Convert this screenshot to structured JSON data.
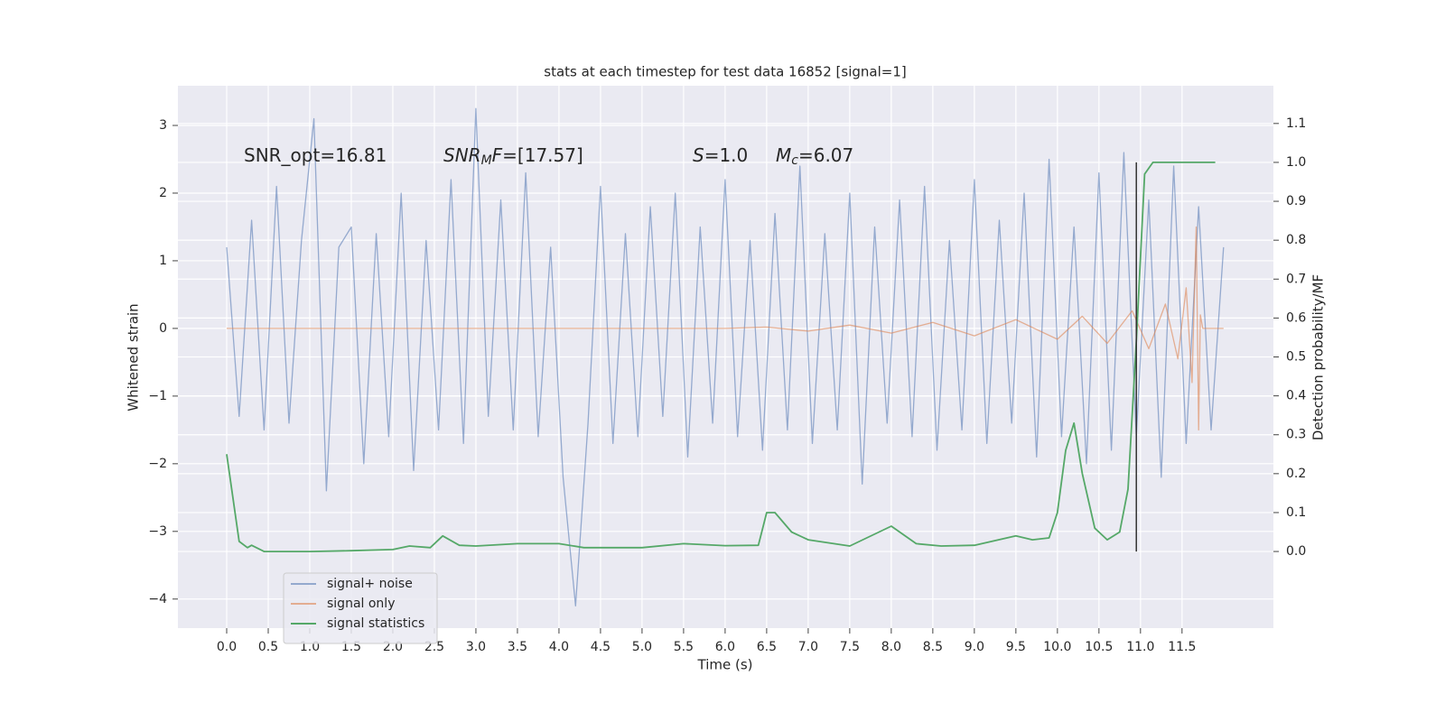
{
  "chart_data": {
    "type": "line",
    "title": "stats at each timestep for test data 16852 [signal=1]",
    "xlabel": "Time (s)",
    "ylabel": "Whitened strain",
    "y2label": "Detection probability/MF",
    "xlim": [
      -0.587,
      12.6
    ],
    "ylim": [
      -4.43,
      3.587
    ],
    "y2lim": [
      -0.197,
      1.197
    ],
    "xticks": [
      {
        "value": 0,
        "label": "0.0"
      },
      0.5,
      {
        "value": 1,
        "label": "1.0"
      },
      1.5,
      {
        "value": 2,
        "label": "2.0"
      },
      2.5,
      {
        "value": 3,
        "label": "3.0"
      },
      3.5,
      {
        "value": 4,
        "label": "4.0"
      },
      4.5,
      {
        "value": 5,
        "label": "5.0"
      },
      5.5,
      {
        "value": 6,
        "label": "6.0"
      },
      6.5,
      {
        "value": 7,
        "label": "7.0"
      },
      7.5,
      {
        "value": 8,
        "label": "8.0"
      },
      8.5,
      {
        "value": 9,
        "label": "9.0"
      },
      9.5,
      {
        "value": 10,
        "label": "10.0"
      },
      10.5,
      {
        "value": 11,
        "label": "11.0"
      },
      11.5
    ],
    "yticks": [
      {
        "value": -4,
        "label": "−4"
      },
      {
        "value": -3,
        "label": "−3"
      },
      {
        "value": -2,
        "label": "−2"
      },
      {
        "value": -1,
        "label": "−1"
      },
      0,
      1,
      2,
      3
    ],
    "y2ticks": [
      {
        "value": 0,
        "label": "0.0"
      },
      0.1,
      0.2,
      0.3,
      0.4,
      0.5,
      0.6,
      0.7,
      0.8,
      0.9,
      {
        "value": 1,
        "label": "1.0"
      },
      1.1
    ],
    "grid": true,
    "legend": "lower left",
    "series": [
      {
        "name": "signal+ noise",
        "color": "#4c72b0",
        "x": [
          0,
          0.15,
          0.3,
          0.45,
          0.6,
          0.75,
          0.9,
          1.05,
          1.2,
          1.35,
          1.5,
          1.65,
          1.8,
          1.95,
          2.1,
          2.25,
          2.4,
          2.55,
          2.7,
          2.85,
          3,
          3.15,
          3.3,
          3.45,
          3.6,
          3.75,
          3.9,
          4.05,
          4.2,
          4.35,
          4.5,
          4.65,
          4.8,
          4.95,
          5.1,
          5.25,
          5.4,
          5.55,
          5.7,
          5.85,
          6,
          6.15,
          6.3,
          6.45,
          6.6,
          6.75,
          6.9,
          7.05,
          7.2,
          7.35,
          7.5,
          7.65,
          7.8,
          7.95,
          8.1,
          8.25,
          8.4,
          8.55,
          8.7,
          8.85,
          9,
          9.15,
          9.3,
          9.45,
          9.6,
          9.75,
          9.9,
          10.05,
          10.2,
          10.35,
          10.5,
          10.65,
          10.8,
          10.95,
          11.1,
          11.25,
          11.4,
          11.55,
          11.7,
          11.85,
          12
        ],
        "values": [
          1.2,
          -1.3,
          1.6,
          -1.5,
          2.1,
          -1.4,
          1.3,
          3.1,
          -2.4,
          1.2,
          1.5,
          -2.0,
          1.4,
          -1.6,
          2.0,
          -2.1,
          1.3,
          -1.5,
          2.2,
          -1.7,
          3.25,
          -1.3,
          1.9,
          -1.5,
          2.3,
          -1.6,
          1.2,
          -2.2,
          -4.1,
          -1.4,
          2.1,
          -1.7,
          1.4,
          -1.6,
          1.8,
          -1.3,
          2.0,
          -1.9,
          1.5,
          -1.4,
          2.2,
          -1.6,
          1.3,
          -1.8,
          1.7,
          -1.5,
          2.4,
          -1.7,
          1.4,
          -1.5,
          2.0,
          -2.3,
          1.5,
          -1.4,
          1.9,
          -1.6,
          2.1,
          -1.8,
          1.3,
          -1.5,
          2.2,
          -1.7,
          1.6,
          -1.4,
          2.0,
          -1.9,
          2.5,
          -1.6,
          1.5,
          -2.0,
          2.3,
          -1.8,
          2.6,
          -1.6,
          1.9,
          -2.2,
          2.4,
          -1.7,
          1.8,
          -1.5,
          1.2
        ]
      },
      {
        "name": "signal only",
        "color": "#dd8452",
        "x": [
          0,
          6,
          6.5,
          7,
          7.5,
          8,
          8.5,
          9,
          9.5,
          10,
          10.3,
          10.6,
          10.9,
          11.1,
          11.3,
          11.45,
          11.55,
          11.62,
          11.67,
          11.7,
          11.72,
          11.75,
          12
        ],
        "values": [
          0,
          0,
          0.02,
          -0.04,
          0.05,
          -0.07,
          0.09,
          -0.11,
          0.13,
          -0.16,
          0.18,
          -0.22,
          0.26,
          -0.3,
          0.36,
          -0.45,
          0.6,
          -0.8,
          1.5,
          -1.5,
          0.2,
          0,
          0
        ]
      },
      {
        "name": "signal statistics",
        "color": "#55a868",
        "axis": "y2",
        "x": [
          0,
          0.15,
          0.25,
          0.3,
          0.45,
          1.0,
          1.5,
          2.0,
          2.2,
          2.45,
          2.6,
          2.8,
          3.0,
          3.5,
          4.0,
          4.3,
          5.0,
          5.5,
          6.0,
          6.4,
          6.5,
          6.6,
          6.8,
          7.0,
          7.5,
          8.0,
          8.3,
          8.6,
          9.0,
          9.5,
          9.7,
          9.9,
          10.0,
          10.1,
          10.2,
          10.3,
          10.45,
          10.6,
          10.75,
          10.85,
          10.95,
          11.05,
          11.15,
          11.9
        ],
        "values": [
          0.25,
          0.026,
          0.01,
          0.016,
          0,
          0,
          0.002,
          0.005,
          0.014,
          0.01,
          0.04,
          0.016,
          0.014,
          0.02,
          0.02,
          0.01,
          0.01,
          0.02,
          0.015,
          0.016,
          0.1,
          0.1,
          0.05,
          0.03,
          0.014,
          0.065,
          0.02,
          0.014,
          0.016,
          0.04,
          0.03,
          0.035,
          0.1,
          0.26,
          0.33,
          0.2,
          0.06,
          0.03,
          0.05,
          0.16,
          0.54,
          0.97,
          1.0,
          1.0
        ]
      }
    ],
    "vlines": [
      {
        "x": 10.95,
        "ymin": 0,
        "ymax": 1.0,
        "axis": "y2",
        "color": "#333333"
      }
    ],
    "annotations": [
      {
        "parts": [
          {
            "text": "SNR_opt=16.81"
          }
        ]
      },
      {
        "parts": [
          {
            "text": "SNR",
            "italic": true
          },
          {
            "text": "M",
            "italic": true,
            "sub": true
          },
          {
            "text": "F",
            "italic": true
          },
          {
            "text": "=[17.57]"
          }
        ]
      },
      {
        "parts": [
          {
            "text": "S",
            "italic": true
          },
          {
            "text": "=1.0"
          }
        ]
      },
      {
        "parts": [
          {
            "text": "M",
            "italic": true
          },
          {
            "text": "c",
            "italic": true,
            "sub": true
          },
          {
            "text": "=6.07"
          }
        ]
      }
    ]
  }
}
